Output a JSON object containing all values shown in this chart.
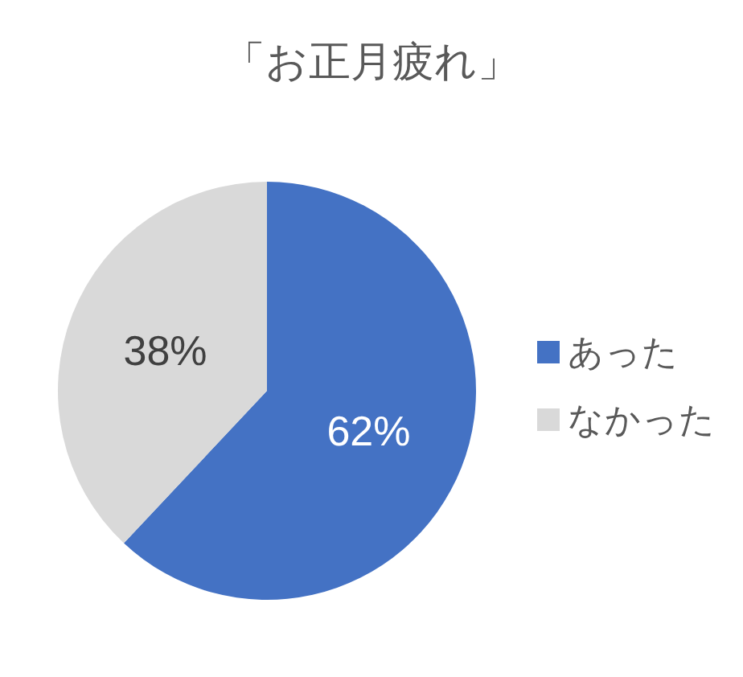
{
  "chart_data": {
    "type": "pie",
    "title": "「お正月疲れ」",
    "categories": [
      "あった",
      "なかった"
    ],
    "values": [
      62,
      38
    ],
    "colors": [
      "#4472c4",
      "#d9d9d9"
    ],
    "value_labels": [
      "62%",
      "38%"
    ],
    "legend": "right"
  }
}
